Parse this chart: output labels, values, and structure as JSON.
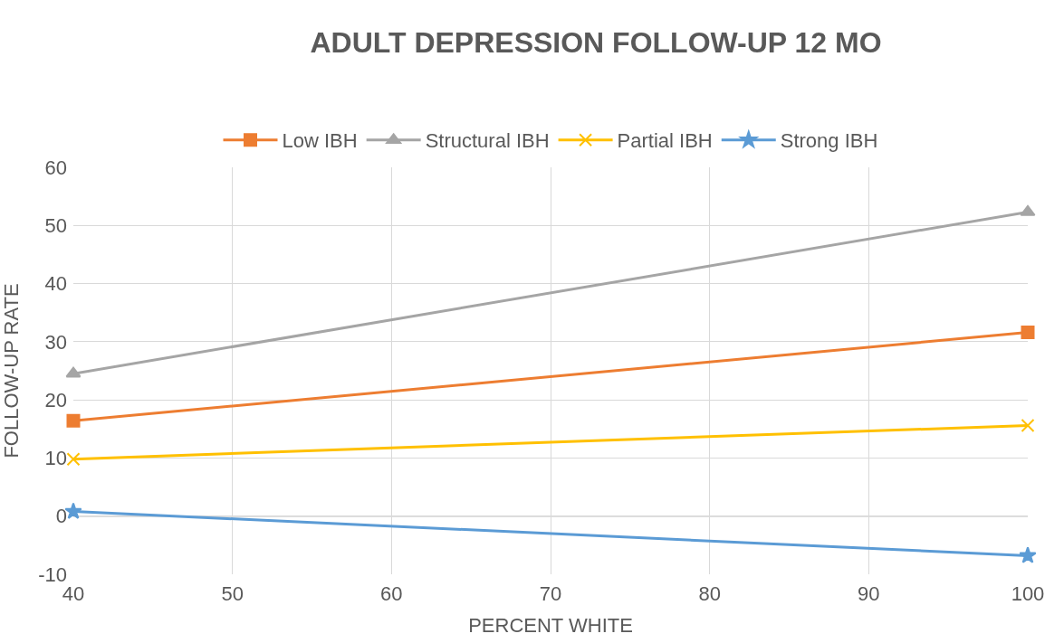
{
  "chart_data": {
    "type": "line",
    "title": "ADULT DEPRESSION FOLLOW-UP 12 MO",
    "xlabel": "PERCENT WHITE",
    "ylabel": "FOLLOW-UP RATE",
    "x": [
      40,
      100
    ],
    "series": [
      {
        "name": "Low IBH",
        "color": "#ed7d31",
        "values": [
          16.4,
          31.6
        ],
        "marker": "square"
      },
      {
        "name": "Structural IBH",
        "color": "#a5a5a5",
        "values": [
          24.5,
          52.3
        ],
        "marker": "triangle"
      },
      {
        "name": "Partial IBH",
        "color": "#ffc000",
        "values": [
          9.8,
          15.6
        ],
        "marker": "cross"
      },
      {
        "name": "Strong IBH",
        "color": "#5b9bd5",
        "values": [
          0.8,
          -6.8
        ],
        "marker": "star"
      }
    ],
    "xlim": [
      40,
      100
    ],
    "xticks": [
      40,
      50,
      60,
      70,
      80,
      90,
      100
    ],
    "ylim": [
      -10,
      60
    ],
    "yticks": [
      -10,
      0,
      10,
      20,
      30,
      40,
      50,
      60
    ],
    "grid": true,
    "legend": "top",
    "line_style": "solid"
  }
}
